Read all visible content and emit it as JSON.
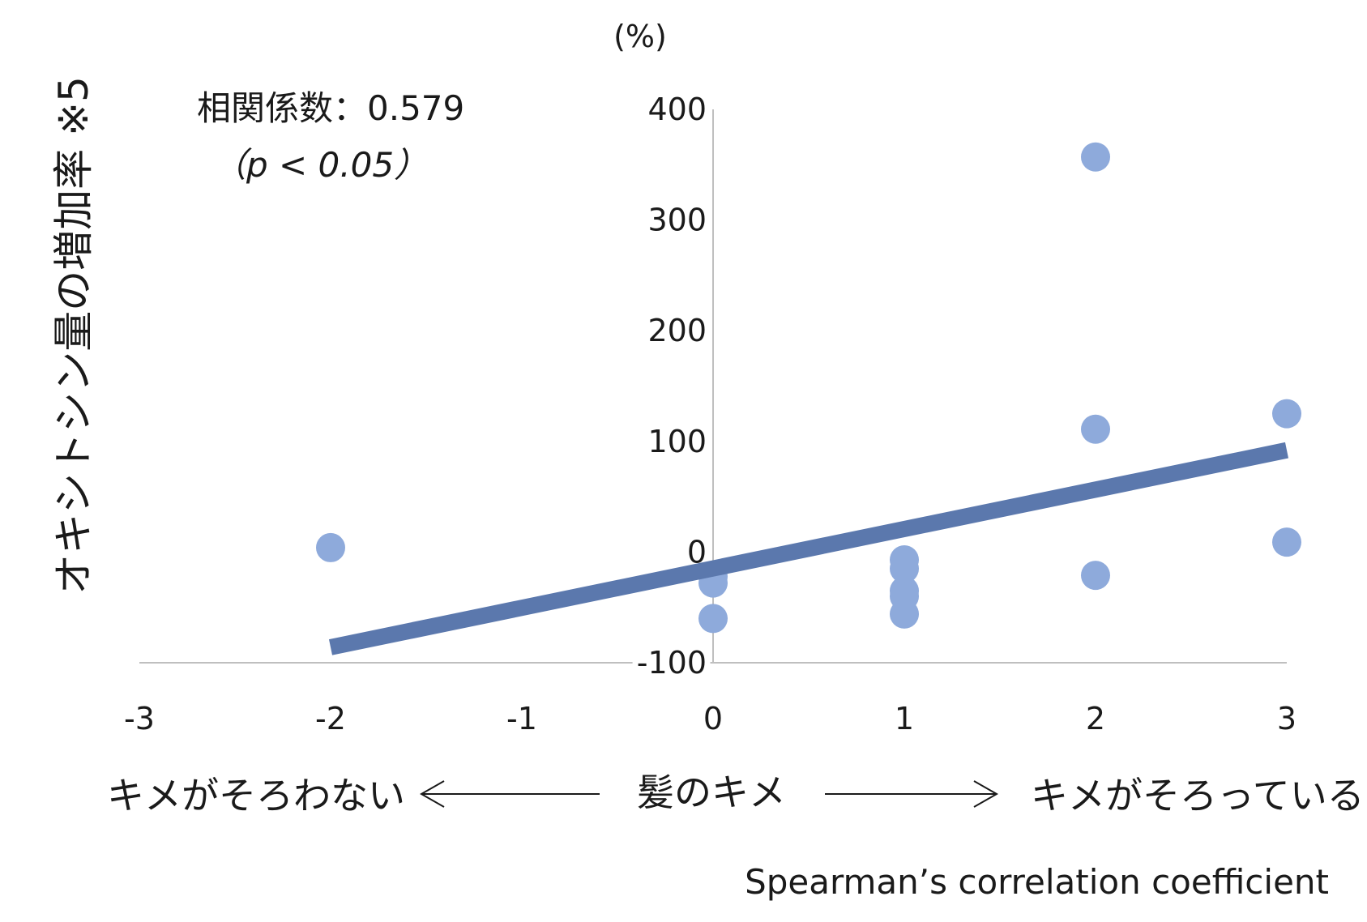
{
  "chart_data": {
    "type": "scatter",
    "y_unit_label": "(%)",
    "ylabel": "オキシトシン量の増加率 ※5",
    "annotation_line1": "相関係数：0.579",
    "annotation_line2": "（p < 0.05）",
    "xlim": [
      -3,
      3
    ],
    "ylim": [
      -100,
      400
    ],
    "x_ticks": [
      -3,
      -2,
      -1,
      0,
      1,
      2,
      3
    ],
    "x_tick_labels": [
      "-3",
      "-2",
      "-1",
      "0",
      "1",
      "2",
      "3"
    ],
    "y_ticks": [
      -100,
      0,
      100,
      200,
      300,
      400
    ],
    "y_tick_labels": [
      "-100",
      "0",
      "100",
      "200",
      "300",
      "400"
    ],
    "x_axis_left_label": "キメがそろわない",
    "x_axis_center_label": "髪のキメ",
    "x_axis_right_label": "キメがそろっている",
    "footer": "Spearman’s correlation coefficient",
    "point_color": "#8eaadb",
    "trendline_color": "#5b78ad",
    "points": [
      {
        "x": -2,
        "y": 4
      },
      {
        "x": 0,
        "y": -22
      },
      {
        "x": 0,
        "y": -28
      },
      {
        "x": 0,
        "y": -60
      },
      {
        "x": 1,
        "y": -7
      },
      {
        "x": 1,
        "y": -15
      },
      {
        "x": 1,
        "y": -35
      },
      {
        "x": 1,
        "y": -40
      },
      {
        "x": 1,
        "y": -56
      },
      {
        "x": 2,
        "y": 357
      },
      {
        "x": 2,
        "y": 111
      },
      {
        "x": 2,
        "y": -21
      },
      {
        "x": 3,
        "y": 125
      },
      {
        "x": 3,
        "y": 9
      }
    ],
    "trendline": {
      "x1": -2,
      "y1": -86,
      "x2": 3,
      "y2": 92
    }
  }
}
